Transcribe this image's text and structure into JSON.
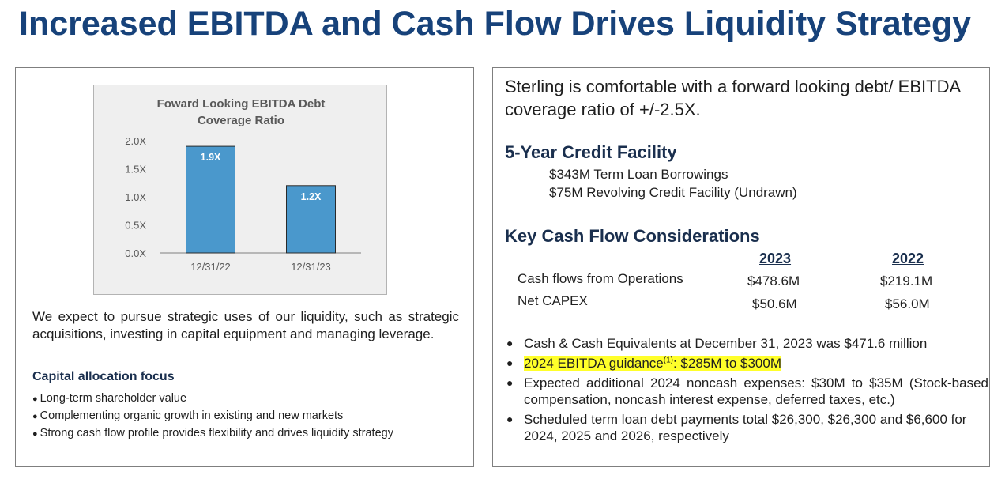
{
  "title": "Increased EBITDA and Cash Flow Drives Liquidity Strategy",
  "chart_data": {
    "type": "bar",
    "title": "Foward Looking EBITDA Debt Coverage Ratio",
    "title_lines": [
      "Foward Looking EBITDA Debt",
      "Coverage Ratio"
    ],
    "categories": [
      "12/31/22",
      "12/31/23"
    ],
    "values": [
      1.9,
      1.2
    ],
    "data_labels": [
      "1.9X",
      "1.2X"
    ],
    "ylim": [
      0,
      2.0
    ],
    "yticks": [
      0,
      0.5,
      1.0,
      1.5,
      2.0
    ],
    "ytick_labels": [
      "0.0X",
      "0.5X",
      "1.0X",
      "1.5X",
      "2.0X"
    ],
    "xlabel": "",
    "ylabel": "",
    "bar_color": "#4a98cc",
    "bar_border": "#2a2a2a"
  },
  "left": {
    "paragraph": "We expect to pursue strategic uses of our liquidity, such as strategic acquisitions, investing in capital equipment and managing leverage.",
    "alloc_heading": "Capital allocation focus",
    "alloc_items": [
      "Long-term shareholder value",
      "Complementing organic growth in existing and new markets",
      "Strong cash flow profile provides flexibility and drives liquidity strategy"
    ]
  },
  "right": {
    "intro": "Sterling is comfortable with a forward looking debt/ EBITDA coverage ratio of +/-2.5X.",
    "credit_heading": "5-Year Credit Facility",
    "credit_items": [
      "$343M Term Loan Borrowings",
      "$75M Revolving Credit Facility (Undrawn)"
    ],
    "cash_heading": "Key Cash Flow Considerations",
    "cash_years": [
      "2023",
      "2022"
    ],
    "cash_rows": [
      {
        "label": "Cash flows from Operations",
        "values": [
          "$478.6M",
          "$219.1M"
        ]
      },
      {
        "label": "Net CAPEX",
        "values": [
          "$50.6M",
          "$56.0M"
        ]
      }
    ],
    "bullet1": "Cash & Cash Equivalents at December 31, 2023 was $471.6 million",
    "bullet2_pre": "2024 EBITDA guidance",
    "bullet2_sup": "(1)",
    "bullet2_post": ": $285M to $300M",
    "bullet3": "Expected additional 2024 noncash expenses: $30M to $35M (Stock-based compensation, noncash interest expense, deferred taxes, etc.)",
    "bullet4": "Scheduled term loan debt payments total $26,300, $26,300 and $6,600 for 2024, 2025 and 2026, respectively",
    "highlight_color": "#ffff2a",
    "accent_color": "#17427a"
  }
}
